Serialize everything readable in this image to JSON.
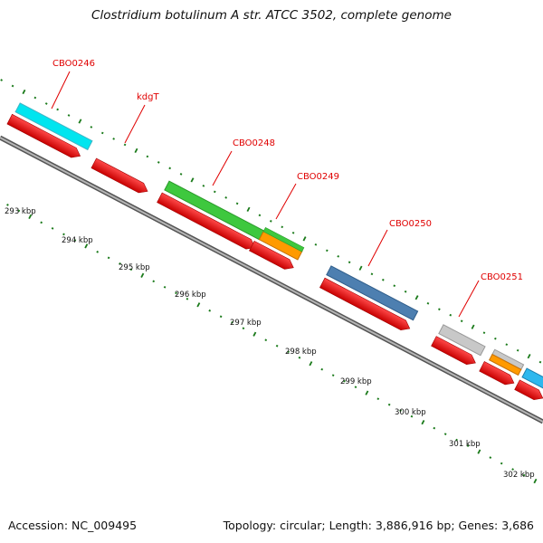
{
  "title": "Clostridium botulinum A str. ATCC 3502, complete genome",
  "footer": {
    "accession_label": "Accession: NC_009495",
    "summary": "Topology: circular; Length: 3,886,916 bp; Genes: 3,686"
  },
  "colors": {
    "cds": "#ee0000",
    "backbone": "#8a8a8a",
    "tick": "#1a7a1a",
    "label": "#e00000"
  },
  "scale_labels": [
    "293 kbp",
    "294 kbp",
    "295 kbp",
    "296 kbp",
    "297 kbp",
    "298 kbp",
    "299 kbp",
    "300 kbp",
    "301 kbp",
    "302 kbp"
  ],
  "gene_labels": [
    "CBO0246",
    "kdgT",
    "CBO0248",
    "CBO0249",
    "CBO0250",
    "CBO0251"
  ]
}
